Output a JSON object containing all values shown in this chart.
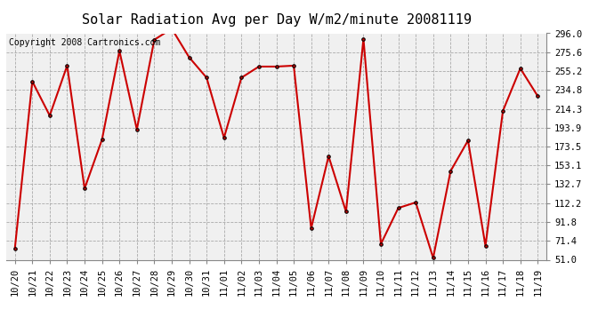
{
  "title": "Solar Radiation Avg per Day W/m2/minute 20081119",
  "copyright": "Copyright 2008 Cartronics.com",
  "labels": [
    "10/20",
    "10/21",
    "10/22",
    "10/23",
    "10/24",
    "10/25",
    "10/26",
    "10/27",
    "10/28",
    "10/29",
    "10/30",
    "10/31",
    "11/01",
    "11/02",
    "11/03",
    "11/04",
    "11/05",
    "11/06",
    "11/07",
    "11/08",
    "11/09",
    "11/10",
    "11/11",
    "11/12",
    "11/13",
    "11/14",
    "11/15",
    "11/16",
    "11/17",
    "11/18",
    "11/19"
  ],
  "values": [
    63,
    244,
    207,
    261,
    128,
    181,
    277,
    192,
    289,
    301,
    270,
    248,
    183,
    248,
    260,
    260,
    261,
    85,
    163,
    103,
    290,
    68,
    107,
    113,
    53,
    147,
    180,
    66,
    212,
    258,
    228
  ],
  "line_color": "#cc0000",
  "marker_color": "#000000",
  "bg_color": "#ffffff",
  "plot_bg_color": "#f0f0f0",
  "grid_color": "#aaaaaa",
  "title_fontsize": 11,
  "copyright_fontsize": 7,
  "tick_fontsize": 7.5,
  "ylim": [
    51.0,
    296.0
  ],
  "yticks": [
    51.0,
    71.4,
    91.8,
    112.2,
    132.7,
    153.1,
    173.5,
    193.9,
    214.3,
    234.8,
    255.2,
    275.6,
    296.0
  ]
}
